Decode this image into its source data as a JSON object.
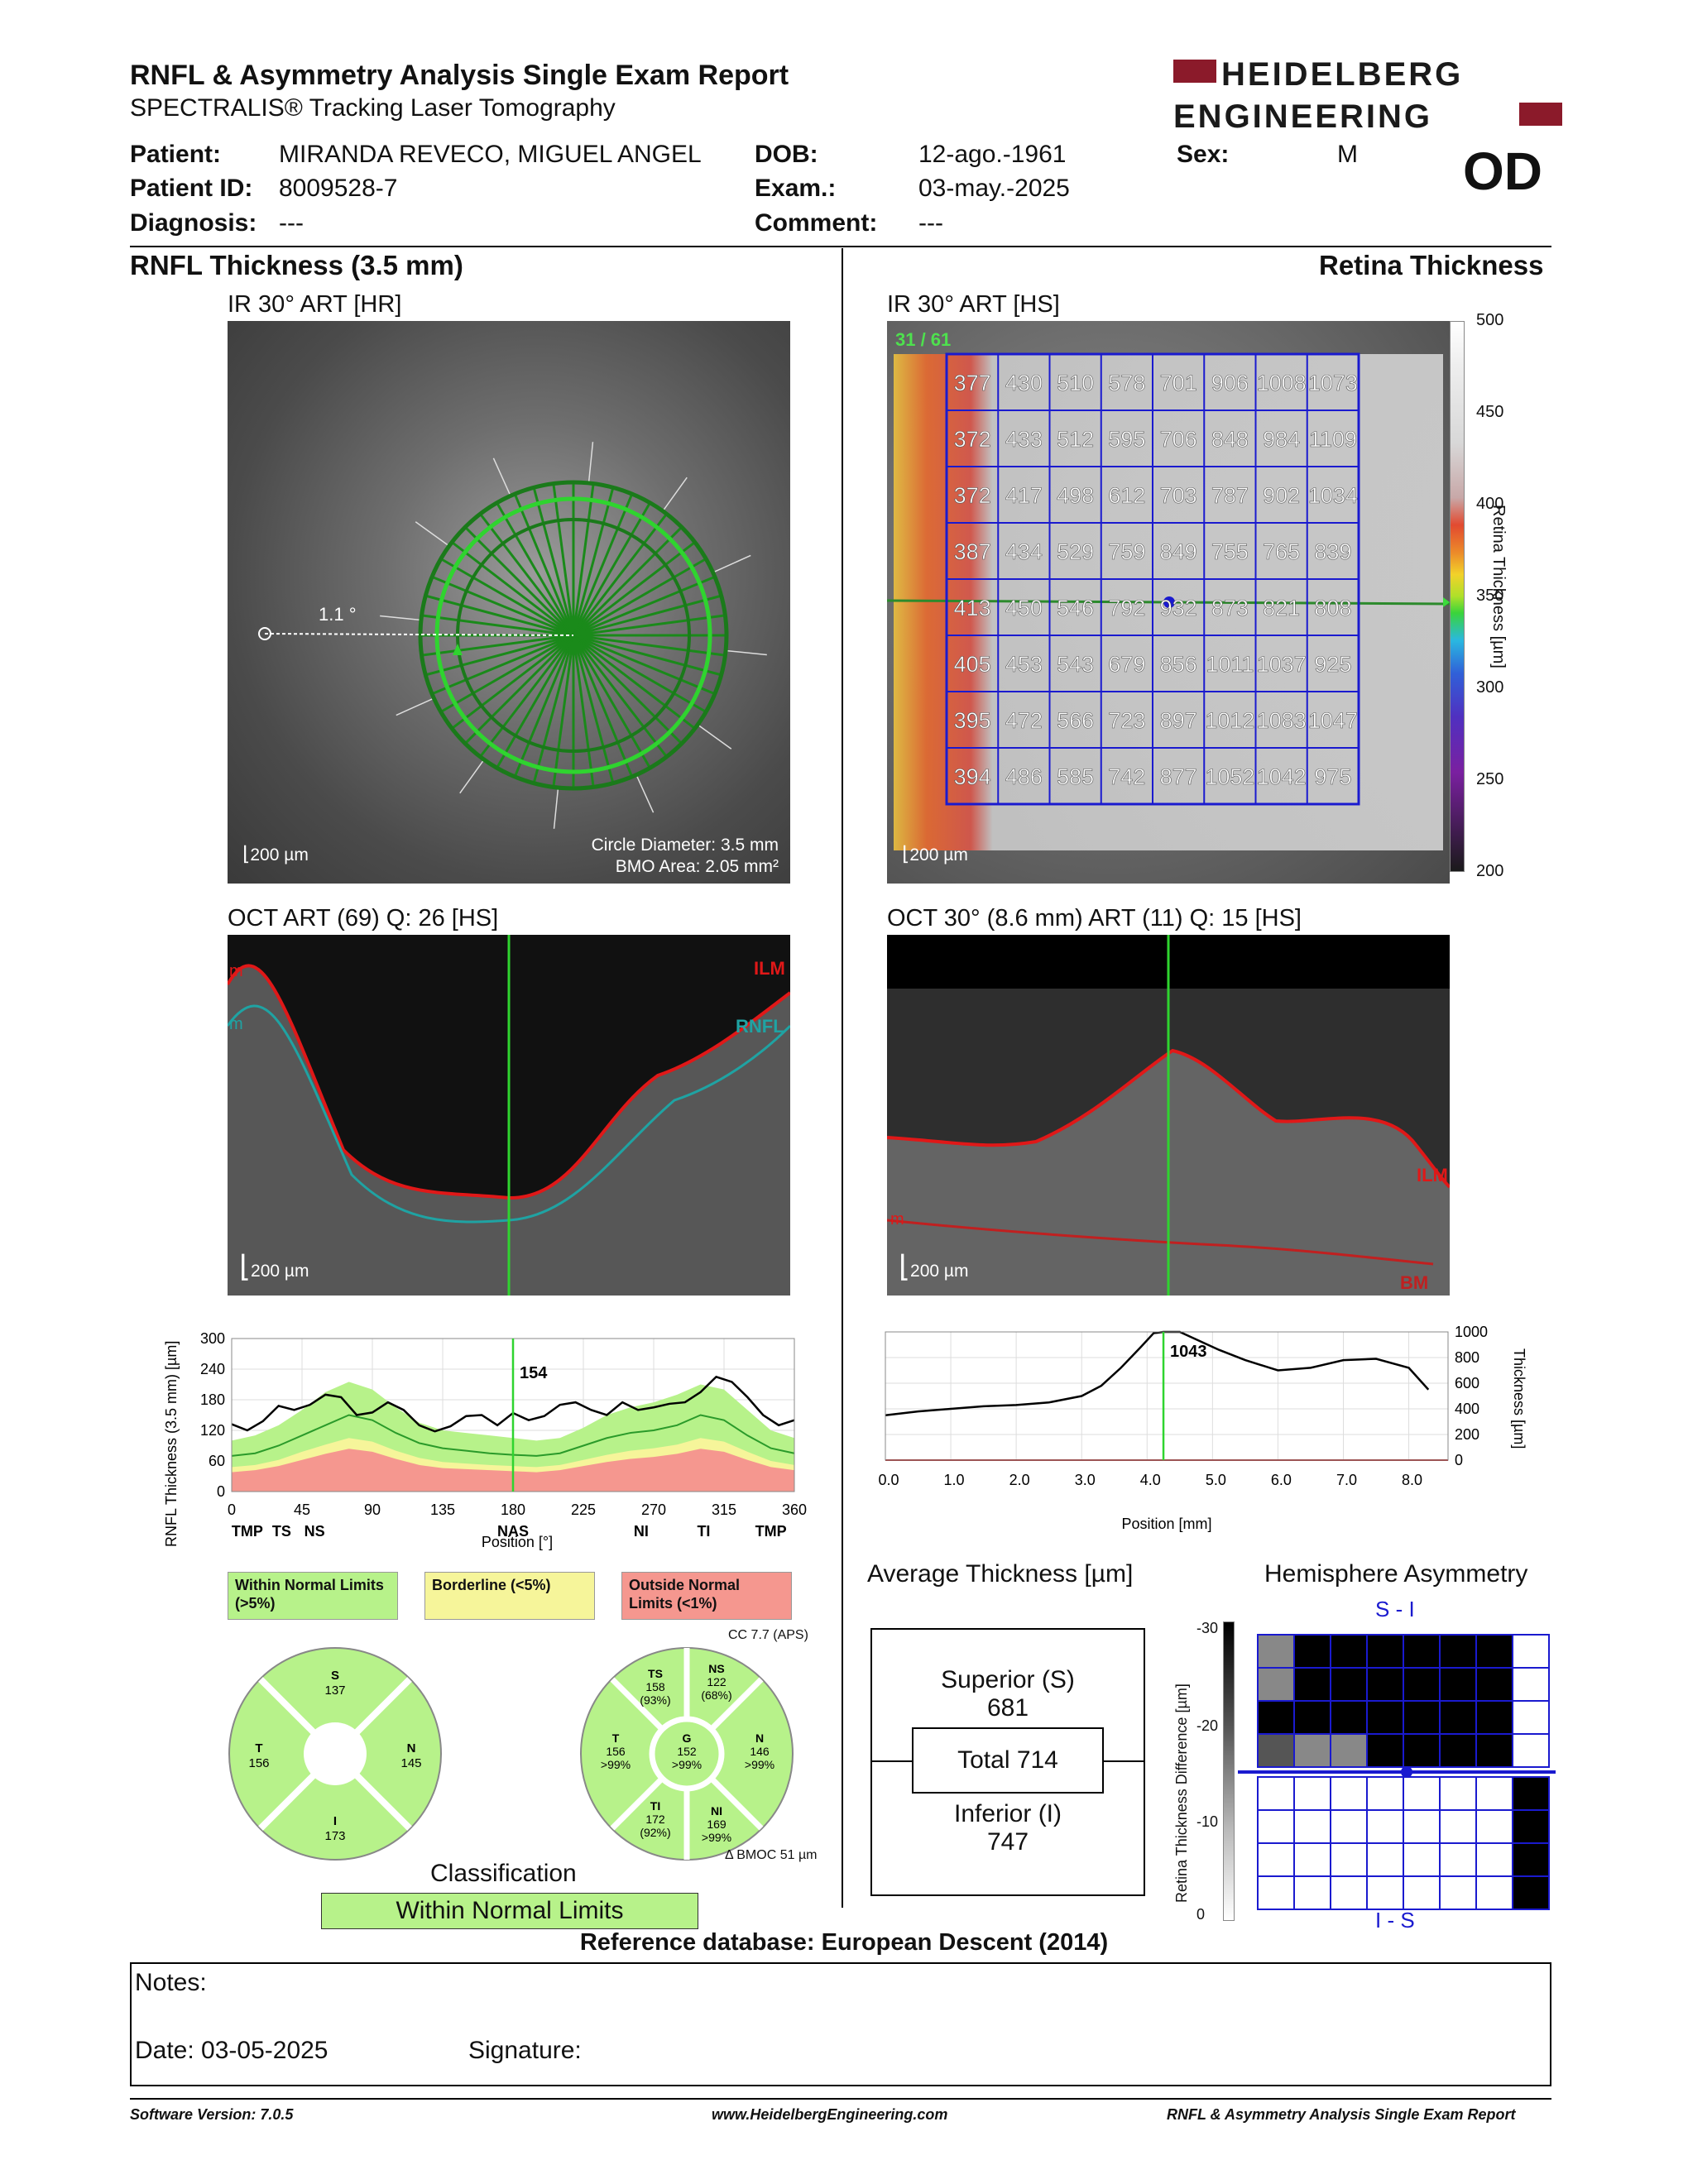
{
  "header": {
    "title": "RNFL & Asymmetry Analysis Single Exam Report",
    "subtitle": "SPECTRALIS® Tracking Laser Tomography",
    "logo_line1": "HEIDELBERG",
    "logo_line2": "ENGINEERING",
    "eye": "OD"
  },
  "patient": {
    "patient_label": "Patient:",
    "patient_value": "MIRANDA REVECO, MIGUEL ANGEL",
    "id_label": "Patient ID:",
    "id_value": "8009528-7",
    "diag_label": "Diagnosis:",
    "diag_value": "---",
    "dob_label": "DOB:",
    "dob_value": "12-ago.-1961",
    "exam_label": "Exam.:",
    "exam_value": "03-may.-2025",
    "comment_label": "Comment:",
    "comment_value": "---",
    "sex_label": "Sex:",
    "sex_value": "M"
  },
  "left": {
    "section_title": "RNFL Thickness (3.5 mm)",
    "ir_label": "IR 30° ART [HR]",
    "ir_angle": "1.1 °",
    "ir_scale": "200 µm",
    "circle_diameter": "Circle Diameter: 3.5 mm",
    "bmo_area": "BMO Area: 2.05 mm²",
    "oct_label": "OCT ART (69) Q: 26 [HS]",
    "oct_scale": "200 µm",
    "oct_ilm": "ILM",
    "oct_rnfl": "RNFL",
    "oct_m1": "m",
    "oct_m2": "m",
    "graph_ylabel": "RNFL Thickness (3.5 mm) [µm]",
    "graph_xlabel": "Position [°]",
    "graph_marker": "154",
    "legend_within": "Within Normal Limits (>5%)",
    "legend_border": "Borderline (<5%)",
    "legend_outside": "Outside Normal Limits (<1%)",
    "cc_label": "CC 7.7 (APS)",
    "bmo_offset": "Δ BMOC 51 µm",
    "classification_label": "Classification",
    "classification_value": "Within Normal Limits"
  },
  "sectors4": {
    "S": {
      "name": "S",
      "value": "137"
    },
    "T": {
      "name": "T",
      "value": "156"
    },
    "N": {
      "name": "N",
      "value": "145"
    },
    "I": {
      "name": "I",
      "value": "173"
    }
  },
  "sectors6": {
    "TS": {
      "name": "TS",
      "value": "158",
      "pct": "(93%)"
    },
    "NS": {
      "name": "NS",
      "value": "122",
      "pct": "(68%)"
    },
    "T": {
      "name": "T",
      "value": "156",
      "pct": ">99%"
    },
    "G": {
      "name": "G",
      "value": "152",
      "pct": ">99%"
    },
    "N": {
      "name": "N",
      "value": "146",
      "pct": ">99%"
    },
    "TI": {
      "name": "TI",
      "value": "172",
      "pct": "(92%)"
    },
    "NI": {
      "name": "NI",
      "value": "169",
      "pct": ">99%"
    }
  },
  "right": {
    "section_title": "Retina Thickness",
    "ir_label": "IR 30° ART [HS]",
    "ir_counter": "31 / 61",
    "ir_scale": "200 µm",
    "colorbar_label": "Retina Thickness [µm]",
    "oct_label": "OCT 30° (8.6 mm) ART (11) Q: 15 [HS]",
    "oct_scale": "200 µm",
    "oct_ilm": "ILM",
    "oct_bm": "BM",
    "oct_m": "m",
    "graph_ylabel": "Thickness [µm]",
    "graph_xlabel": "Position [mm]",
    "graph_marker": "1043",
    "avg_title": "Average Thickness [µm]",
    "avg_superior_label": "Superior (S)",
    "avg_superior_value": "681",
    "avg_total": "Total 714",
    "avg_inferior_label": "Inferior (I)",
    "avg_inferior_value": "747",
    "hemi_title": "Hemisphere Asymmetry",
    "hemi_top": "S - I",
    "hemi_bottom": "I - S",
    "hemi_ylabel": "Retina Thickness Difference [µm]"
  },
  "colorbar_ticks": [
    "500",
    "450",
    "400",
    "350",
    "300",
    "250",
    "200"
  ],
  "hemi_ticks": [
    "-30",
    "-20",
    "-10",
    "0"
  ],
  "retina_grid": [
    [
      "377",
      "430",
      "510",
      "578",
      "701",
      "906",
      "1008",
      "1073"
    ],
    [
      "372",
      "433",
      "512",
      "595",
      "706",
      "848",
      "984",
      "1109"
    ],
    [
      "372",
      "417",
      "498",
      "612",
      "703",
      "787",
      "902",
      "1034"
    ],
    [
      "387",
      "434",
      "529",
      "759",
      "849",
      "755",
      "765",
      "839"
    ],
    [
      "413",
      "450",
      "546",
      "792",
      "932",
      "873",
      "821",
      "808"
    ],
    [
      "405",
      "453",
      "543",
      "679",
      "856",
      "1011",
      "1037",
      "925"
    ],
    [
      "395",
      "472",
      "566",
      "723",
      "897",
      "1012",
      "1083",
      "1047"
    ],
    [
      "394",
      "486",
      "585",
      "742",
      "877",
      "1052",
      "1042",
      "975"
    ]
  ],
  "hemi_grid_top": [
    [
      1,
      3,
      3,
      3,
      3,
      3,
      3,
      0
    ],
    [
      1,
      3,
      3,
      3,
      3,
      3,
      3,
      0
    ],
    [
      3,
      3,
      3,
      3,
      3,
      3,
      3,
      0
    ],
    [
      2,
      1,
      1,
      3,
      3,
      3,
      3,
      0
    ]
  ],
  "hemi_grid_bottom": [
    [
      0,
      0,
      0,
      0,
      0,
      0,
      0,
      3
    ],
    [
      0,
      0,
      0,
      0,
      0,
      0,
      0,
      3
    ],
    [
      0,
      0,
      0,
      0,
      0,
      0,
      0,
      3
    ],
    [
      0,
      0,
      0,
      0,
      0,
      0,
      0,
      3
    ]
  ],
  "chart_data": [
    {
      "type": "line",
      "xlabel": "Position [°]",
      "ylabel": "RNFL Thickness (3.5 mm) [µm]",
      "xlim": [
        0,
        360
      ],
      "ylim": [
        0,
        300
      ],
      "x_ticks": [
        "0",
        "45",
        "90",
        "135",
        "180",
        "225",
        "270",
        "315",
        "360"
      ],
      "y_ticks": [
        "0",
        "60",
        "120",
        "180",
        "240",
        "300"
      ],
      "region_labels": [
        "TMP",
        "TS",
        "NS",
        "NAS",
        "NI",
        "TI",
        "TMP"
      ],
      "region_positions": [
        10,
        32,
        53,
        180,
        262,
        302,
        345
      ],
      "marker_x": 180,
      "marker_label": "154",
      "series": [
        {
          "name": "measured",
          "x": [
            0,
            10,
            20,
            30,
            40,
            50,
            60,
            70,
            80,
            90,
            100,
            110,
            120,
            130,
            140,
            150,
            160,
            170,
            180,
            190,
            200,
            210,
            220,
            230,
            240,
            250,
            260,
            270,
            280,
            290,
            300,
            310,
            320,
            330,
            340,
            350,
            360
          ],
          "values": [
            132,
            120,
            138,
            168,
            160,
            170,
            190,
            185,
            150,
            155,
            175,
            160,
            130,
            118,
            128,
            148,
            150,
            130,
            154,
            140,
            148,
            170,
            175,
            160,
            150,
            175,
            160,
            165,
            172,
            175,
            195,
            225,
            215,
            185,
            150,
            130,
            140
          ]
        },
        {
          "name": "normal_mean",
          "x": [
            0,
            15,
            30,
            45,
            60,
            75,
            90,
            105,
            120,
            135,
            150,
            165,
            180,
            195,
            210,
            225,
            240,
            255,
            270,
            285,
            300,
            315,
            330,
            345,
            360
          ],
          "values": [
            70,
            75,
            90,
            110,
            130,
            150,
            140,
            115,
            95,
            85,
            80,
            75,
            72,
            70,
            75,
            90,
            105,
            115,
            120,
            130,
            150,
            140,
            110,
            85,
            75
          ]
        },
        {
          "name": "normal_high",
          "x": [
            0,
            15,
            30,
            45,
            60,
            75,
            90,
            105,
            120,
            135,
            150,
            165,
            180,
            195,
            210,
            225,
            240,
            255,
            270,
            285,
            300,
            315,
            330,
            345,
            360
          ],
          "values": [
            100,
            110,
            130,
            160,
            195,
            215,
            200,
            165,
            135,
            120,
            115,
            110,
            105,
            100,
            105,
            125,
            150,
            165,
            175,
            190,
            210,
            200,
            160,
            120,
            105
          ]
        },
        {
          "name": "borderline_low",
          "x": [
            0,
            15,
            30,
            45,
            60,
            75,
            90,
            105,
            120,
            135,
            150,
            165,
            180,
            195,
            210,
            225,
            240,
            255,
            270,
            285,
            300,
            315,
            330,
            345,
            360
          ],
          "values": [
            48,
            52,
            62,
            78,
            92,
            105,
            98,
            80,
            66,
            58,
            55,
            52,
            50,
            48,
            52,
            62,
            72,
            80,
            85,
            92,
            105,
            98,
            78,
            60,
            52
          ]
        },
        {
          "name": "outside_low",
          "x": [
            0,
            15,
            30,
            45,
            60,
            75,
            90,
            105,
            120,
            135,
            150,
            165,
            180,
            195,
            210,
            225,
            240,
            255,
            270,
            285,
            300,
            315,
            330,
            345,
            360
          ],
          "values": [
            38,
            42,
            50,
            62,
            74,
            84,
            78,
            64,
            52,
            46,
            44,
            42,
            40,
            38,
            42,
            50,
            58,
            64,
            68,
            74,
            84,
            78,
            62,
            48,
            42
          ]
        }
      ]
    },
    {
      "type": "line",
      "xlabel": "Position [mm]",
      "ylabel": "Thickness [µm]",
      "xlim": [
        0,
        8.6
      ],
      "ylim": [
        0,
        1000
      ],
      "x_ticks": [
        "0.0",
        "1.0",
        "2.0",
        "3.0",
        "4.0",
        "5.0",
        "6.0",
        "7.0",
        "8.0"
      ],
      "y_ticks": [
        "0",
        "200",
        "400",
        "600",
        "800",
        "1000"
      ],
      "marker_x": 4.25,
      "marker_label": "1043",
      "series": [
        {
          "name": "retina",
          "x": [
            0.0,
            0.5,
            1.0,
            1.5,
            2.0,
            2.5,
            3.0,
            3.3,
            3.6,
            3.9,
            4.1,
            4.25,
            4.5,
            4.8,
            5.1,
            5.5,
            6.0,
            6.5,
            7.0,
            7.5,
            8.0,
            8.3
          ],
          "values": [
            350,
            380,
            400,
            420,
            430,
            450,
            500,
            580,
            720,
            880,
            990,
            1043,
            1000,
            930,
            860,
            780,
            700,
            720,
            780,
            790,
            720,
            550
          ]
        }
      ]
    }
  ]
}
